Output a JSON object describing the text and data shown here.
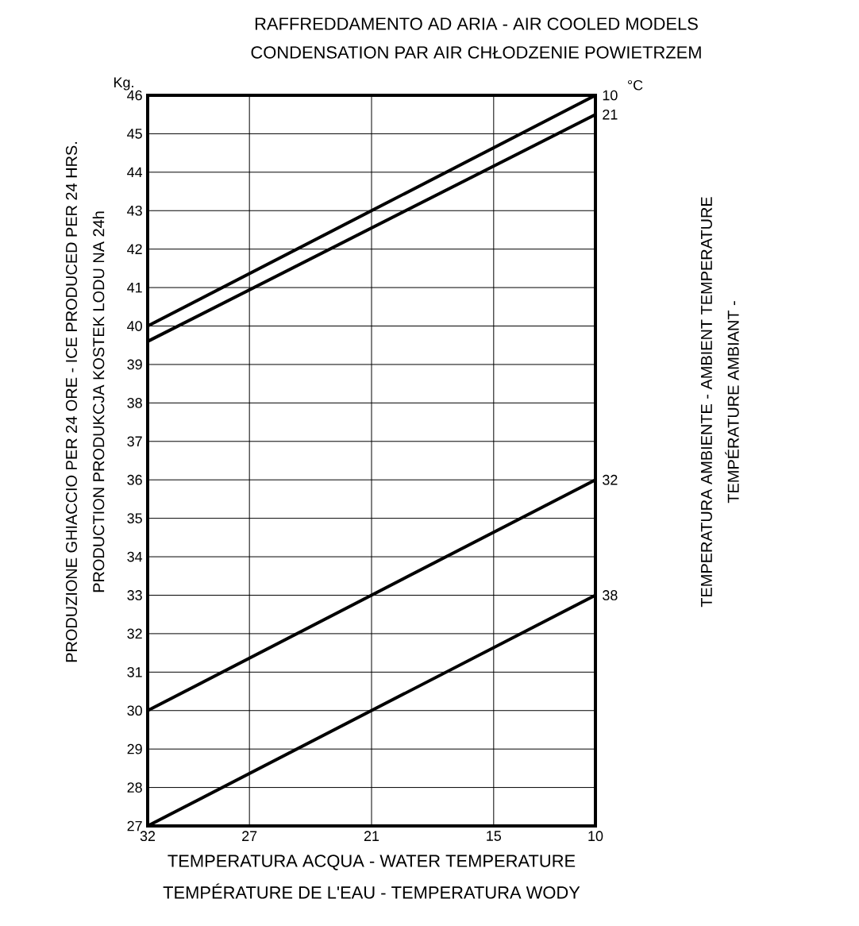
{
  "chart_data": {
    "type": "line",
    "title": "RAFFREDDAMENTO AD ARIA - AIR COOLED MODELS",
    "subtitle": "CONDENSATION PAR AIR CHŁODZENIE POWIETRZEM",
    "xlabel": "TEMPERATURA ACQUA - WATER TEMPERATURE",
    "ylabel": "PRODUZIONE GHIACCIO PER 24 ORE - ICE PRODUCED PER 24 HRS.",
    "annotations": [
      "Kg.",
      "°C",
      "PRODUCTION  PRODUKCJA KOSTEK LODU NA 24h",
      "TEMPERATURA AMBIENTE - AMBIENT TEMPERATURE",
      "TEMPÉRATURE AMBIANT -",
      "TEMPÉRATURE DE L'EAU - TEMPERATURA WODY"
    ],
    "x": [
      32,
      10
    ],
    "xlim": [
      32,
      10
    ],
    "xticks": [
      32,
      27,
      21,
      15,
      10
    ],
    "ylim": [
      27,
      46
    ],
    "yticks": [
      27,
      28,
      29,
      30,
      31,
      32,
      33,
      34,
      35,
      36,
      37,
      38,
      39,
      40,
      41,
      42,
      43,
      44,
      45,
      46
    ],
    "grid": true,
    "legend": false,
    "marker": "none",
    "line_style": "solid",
    "series": [
      {
        "name": "10",
        "color": "#000000",
        "values": [
          40.0,
          46.0
        ]
      },
      {
        "name": "21",
        "color": "#000000",
        "values": [
          39.6,
          45.5
        ]
      },
      {
        "name": "32",
        "color": "#000000",
        "values": [
          30.0,
          36.0
        ]
      },
      {
        "name": "38",
        "color": "#000000",
        "values": [
          27.0,
          33.0
        ]
      }
    ]
  }
}
